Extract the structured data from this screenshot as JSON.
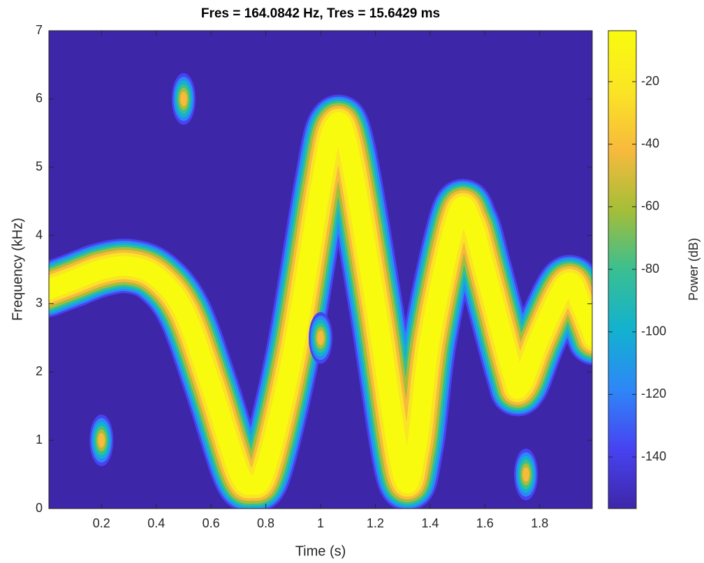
{
  "chart_data": {
    "type": "spectrogram",
    "title": "Fres = 164.0842 Hz, Tres = 15.6429 ms",
    "xlabel": "Time (s)",
    "ylabel": "Frequency (kHz)",
    "colorbar_label": "Power (dB)",
    "xlim": [
      0.008,
      1.992
    ],
    "xticks": [
      0.2,
      0.4,
      0.6,
      0.8,
      1,
      1.2,
      1.4,
      1.6,
      1.8
    ],
    "ylim": [
      0,
      7
    ],
    "yticks": [
      0,
      1,
      2,
      3,
      4,
      5,
      6,
      7
    ],
    "clim": [
      -156.5,
      -3.7
    ],
    "cticks": [
      -140,
      -120,
      -100,
      -80,
      -60,
      -40,
      -20
    ],
    "colormap": [
      "#3e26a8",
      "#4743f2",
      "#2e87f7",
      "#12b2cf",
      "#3abf91",
      "#a5be37",
      "#f8ba3d",
      "#fae524",
      "#f9fb0e"
    ],
    "ridge": {
      "power": -5,
      "time": [
        0,
        0.1,
        0.2,
        0.3,
        0.4,
        0.5,
        0.6,
        0.7,
        0.75,
        0.8,
        0.9,
        1.0,
        1.05,
        1.1,
        1.2,
        1.3,
        1.35,
        1.4,
        1.5,
        1.55,
        1.6,
        1.7,
        1.73,
        1.8,
        1.9,
        1.95,
        2.0
      ],
      "frequency": [
        3.2,
        3.35,
        3.5,
        3.55,
        3.4,
        2.9,
        1.8,
        0.55,
        0.35,
        0.6,
        2.3,
        4.7,
        5.6,
        5.3,
        3.0,
        0.5,
        0.9,
        2.5,
        4.3,
        4.2,
        3.5,
        2.0,
        1.8,
        2.5,
        3.3,
        3.0,
        2.5
      ]
    },
    "sources": [
      {
        "time": 0.2,
        "frequency": 1,
        "power": -50
      },
      {
        "time": 0.5,
        "frequency": 6,
        "power": -50
      },
      {
        "time": 1.0,
        "frequency": 2.5,
        "power": -50
      },
      {
        "time": 1.75,
        "frequency": 0.5,
        "power": -50
      }
    ]
  }
}
